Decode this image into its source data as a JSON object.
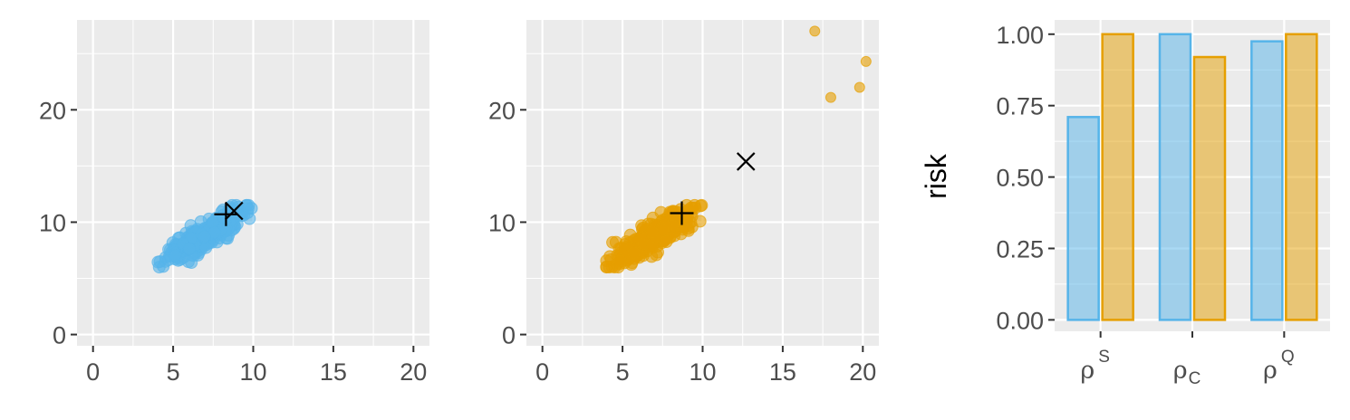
{
  "colors": {
    "panel_bg": "#ebebeb",
    "grid": "#ffffff",
    "tick": "#333333",
    "blue": "#56b4e9",
    "orange": "#e69f00",
    "marker": "#000000"
  },
  "chart_data": [
    {
      "type": "scatter",
      "panel": "left",
      "color": "blue",
      "xlim": [
        -1,
        21
      ],
      "ylim": [
        -1,
        28
      ],
      "x_ticks": [
        "0",
        "5",
        "10",
        "15",
        "20"
      ],
      "y_ticks": [
        "0",
        "10",
        "20"
      ],
      "x_tick_values": [
        0,
        5,
        10,
        15,
        20
      ],
      "y_tick_values": [
        0,
        10,
        20
      ],
      "cluster": {
        "x_range": [
          4,
          10
        ],
        "y_range": [
          6,
          11.5
        ],
        "n_points": 320,
        "correlation": "positive"
      },
      "outliers": [],
      "markers": {
        "plus": [
          8.3,
          10.7
        ],
        "cross": [
          8.8,
          11.0
        ]
      }
    },
    {
      "type": "scatter",
      "panel": "middle",
      "color": "orange",
      "xlim": [
        -1,
        21
      ],
      "ylim": [
        -1,
        28
      ],
      "x_ticks": [
        "0",
        "5",
        "10",
        "15",
        "20"
      ],
      "y_ticks": [
        "0",
        "10",
        "20"
      ],
      "x_tick_values": [
        0,
        5,
        10,
        15,
        20
      ],
      "y_tick_values": [
        0,
        10,
        20
      ],
      "cluster": {
        "x_range": [
          4,
          10
        ],
        "y_range": [
          6,
          11.5
        ],
        "n_points": 320,
        "correlation": "positive"
      },
      "outliers": [
        [
          17.0,
          27.0
        ],
        [
          18.0,
          21.1
        ],
        [
          19.8,
          22.0
        ],
        [
          20.2,
          24.3
        ]
      ],
      "markers": {
        "plus": [
          8.7,
          10.8
        ],
        "cross": [
          12.7,
          15.4
        ]
      }
    },
    {
      "type": "bar",
      "panel": "right",
      "ylabel": "risk",
      "ylim": [
        -0.04,
        1.05
      ],
      "y_ticks": [
        "0.00",
        "0.25",
        "0.50",
        "0.75",
        "1.00"
      ],
      "y_tick_values": [
        0,
        0.25,
        0.5,
        0.75,
        1.0
      ],
      "categories": [
        {
          "base": "ρ",
          "sup": "S",
          "sub": ""
        },
        {
          "base": "ρ",
          "sup": "",
          "sub": "C"
        },
        {
          "base": "ρ",
          "sup": "Q",
          "sub": ""
        }
      ],
      "series": [
        {
          "color": "blue",
          "values": [
            0.71,
            1.0,
            0.975
          ]
        },
        {
          "color": "orange",
          "values": [
            1.0,
            0.92,
            1.0
          ]
        }
      ]
    }
  ]
}
